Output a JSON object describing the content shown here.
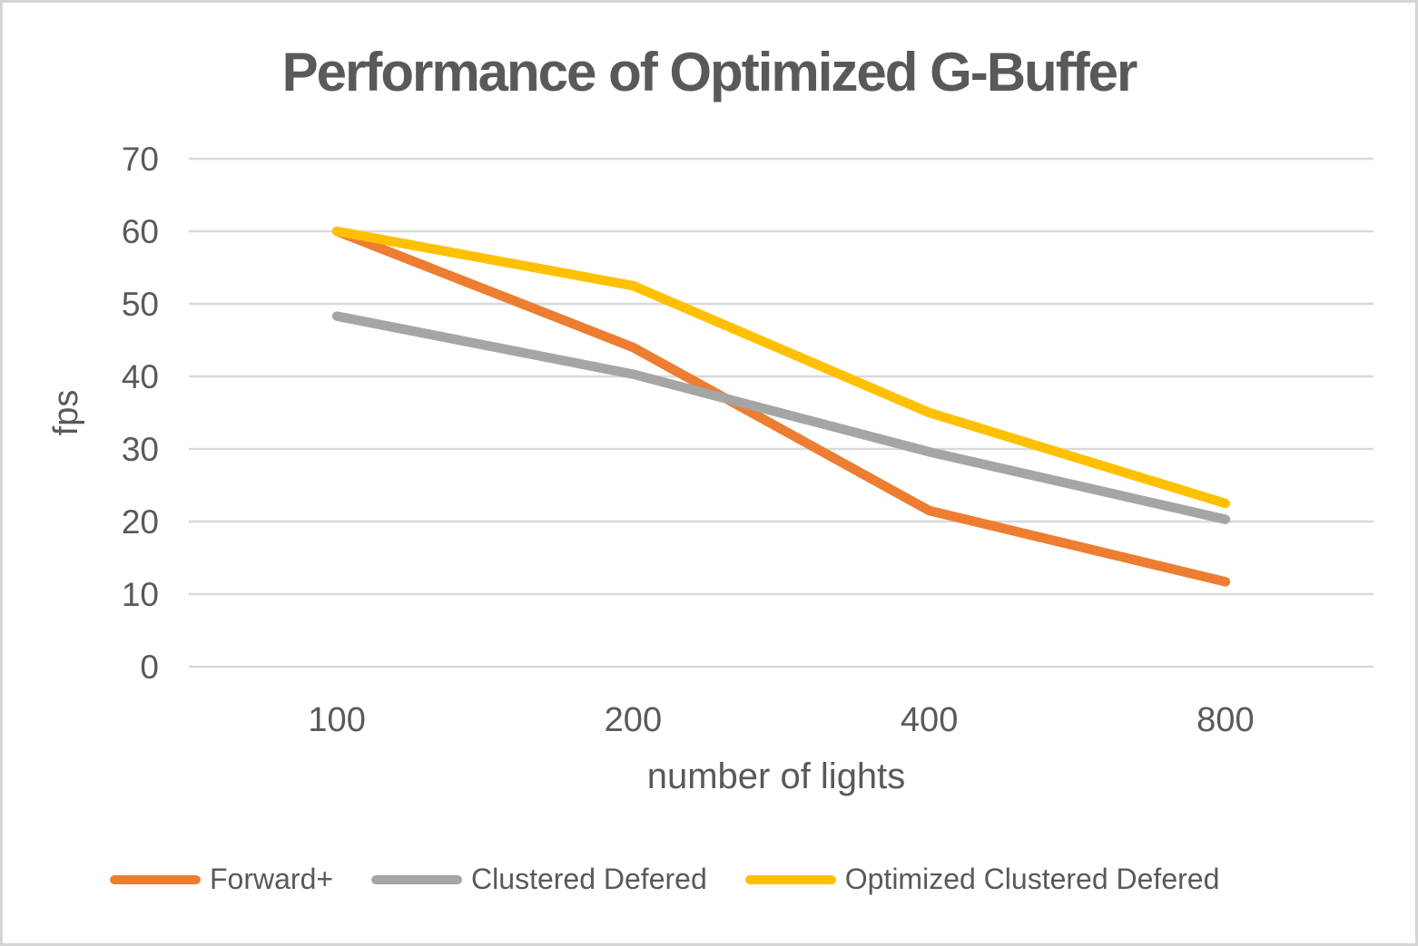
{
  "title": "Performance of Optimized G-Buffer",
  "colors": {
    "text": "#595959",
    "gridline": "#d9d9d9",
    "background": "#ffffff",
    "frame_border": "#d4d4d4"
  },
  "chart_data": {
    "type": "line",
    "title": "Performance of Optimized G-Buffer",
    "xlabel": "number of lights",
    "ylabel": "fps",
    "categories": [
      "100",
      "200",
      "400",
      "800"
    ],
    "series": [
      {
        "name": "Forward+",
        "color": "#ED7D31",
        "values": [
          60,
          44,
          21.5,
          11.7
        ]
      },
      {
        "name": "Clustered Defered",
        "color": "#A5A5A5",
        "values": [
          48.3,
          40.3,
          29.6,
          20.3
        ]
      },
      {
        "name": "Optimized Clustered Defered",
        "color": "#FFC000",
        "values": [
          60,
          52.5,
          35,
          22.5
        ]
      }
    ],
    "ylim": [
      0,
      70
    ],
    "yticks": [
      0,
      10,
      20,
      30,
      40,
      50,
      60,
      70
    ],
    "grid": true,
    "legend_position": "bottom"
  }
}
